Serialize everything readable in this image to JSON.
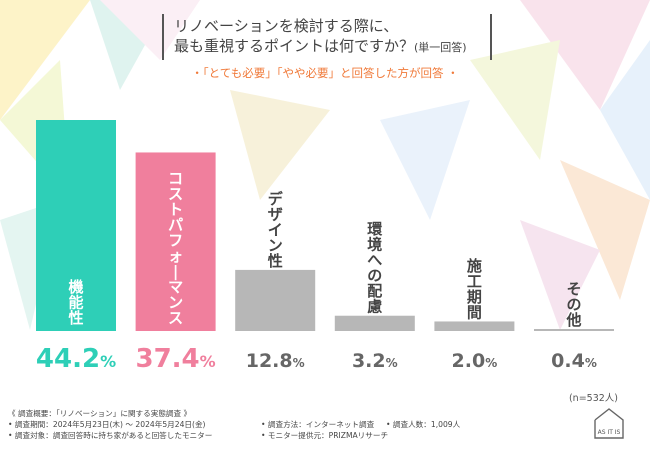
{
  "title": {
    "line1": "リノベーションを検討する際に、",
    "line2": "最も重視するポイントは何ですか？",
    "line2_note": "(単一回答)"
  },
  "subtitle": "・「とても必要」「やや必要」と回答した方が回答 ・",
  "chart_data": {
    "type": "bar",
    "title": "リノベーションを検討する際に、最も重視するポイントは何ですか？(単一回答)",
    "categories": [
      "機能性",
      "コストパフォーマンス",
      "デザイン性",
      "環境への配慮",
      "施工期間",
      "その他"
    ],
    "values": [
      44.2,
      37.4,
      12.8,
      3.2,
      2.0,
      0.4
    ],
    "value_labels": [
      "44.2%",
      "37.4%",
      "12.8%",
      "3.2%",
      "2.0%",
      "0.4%"
    ],
    "unit": "%",
    "ylim": [
      0,
      44.2
    ],
    "colors": [
      "#2ecfb7",
      "#f07f9d",
      "#b7b7b7",
      "#b7b7b7",
      "#b7b7b7",
      "#b7b7b7"
    ],
    "label_colors": [
      "#2ecfb7",
      "#f07f9d",
      "#666666",
      "#666666",
      "#666666",
      "#666666"
    ],
    "category_label_colors": [
      "#ffffff",
      "#ffffff",
      "#444444",
      "#444444",
      "#444444",
      "#444444"
    ]
  },
  "sample_size": "(n=532人)",
  "footer": {
    "overview": "《 調査概要：「リノベーション」に関する実態調査 》",
    "period": "• 調査期間：2024年5月23日(木) ～ 2024年5月24日(金)",
    "target": "• 調査対象：調査回答時に持ち家があると回答したモニター",
    "method": "• 調査方法：インターネット調査",
    "provider": "• モニター提供元：PRIZMAリサーチ",
    "count": "• 調査人数：1,009人"
  },
  "logo_text": "AS IT IS"
}
